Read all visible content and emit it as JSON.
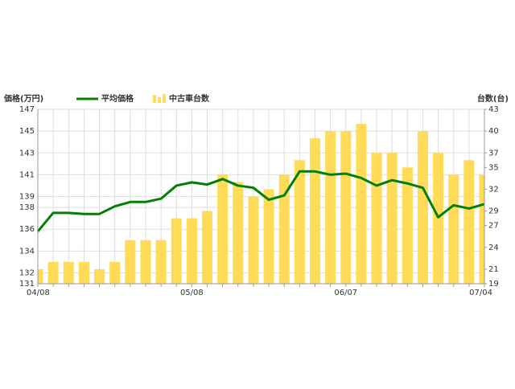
{
  "chart_data": {
    "type": "bar-line",
    "y_label": "価格(万円)",
    "y2_label": "台数(台)",
    "categories": [
      "04/08",
      null,
      null,
      null,
      null,
      null,
      null,
      null,
      null,
      null,
      "05/08",
      null,
      null,
      null,
      null,
      null,
      null,
      null,
      null,
      null,
      "06/07",
      null,
      null,
      null,
      null,
      null,
      null,
      null,
      null,
      "07/04"
    ],
    "series": [
      {
        "name": "平均価格",
        "kind": "line",
        "color": "#008000",
        "values": [
          135.8,
          137.5,
          137.5,
          137.4,
          137.4,
          138.1,
          138.5,
          138.5,
          138.8,
          140.0,
          140.3,
          140.1,
          140.6,
          140.0,
          139.8,
          138.7,
          139.1,
          141.3,
          141.3,
          141.0,
          141.1,
          140.7,
          140.0,
          140.5,
          140.2,
          139.8,
          137.1,
          138.2,
          137.9,
          138.3
        ]
      },
      {
        "name": "中古車台数",
        "kind": "bar",
        "axis": "y2",
        "color": "#ffdb58",
        "values": [
          21,
          22,
          22,
          22,
          21,
          22,
          25,
          25,
          25,
          28,
          28,
          29,
          34,
          33,
          31,
          32,
          34,
          36,
          39,
          40,
          40,
          41,
          37,
          37,
          35,
          40,
          37,
          34,
          36,
          34
        ]
      }
    ],
    "ylim": [
      131,
      147
    ],
    "yticks": [
      131,
      132,
      134,
      136,
      138,
      139,
      141,
      143,
      145,
      147
    ],
    "y2lim": [
      19,
      43
    ],
    "y2ticks": [
      19,
      21,
      24,
      27,
      29,
      32,
      35,
      37,
      40,
      43
    ],
    "grid": true
  }
}
